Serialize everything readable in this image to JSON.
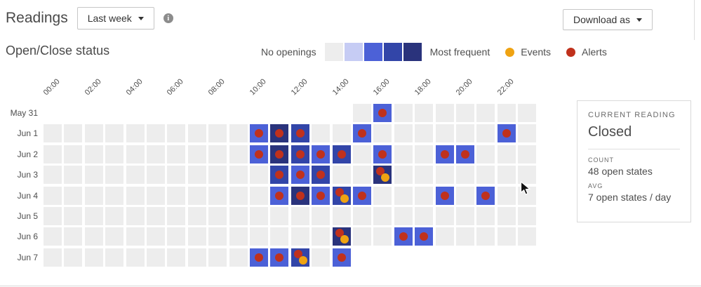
{
  "header": {
    "title": "Readings",
    "range_label": "Last week",
    "download_label": "Download as"
  },
  "section": {
    "title": "Open/Close status"
  },
  "legend": {
    "no_openings_label": "No openings",
    "most_frequent_label": "Most frequent",
    "events_label": "Events",
    "alerts_label": "Alerts",
    "scale_colors": [
      "#ededed",
      "#c6ccf4",
      "#4c61d7",
      "#3245a8",
      "#2a337c"
    ],
    "events_color": "#efa312",
    "alerts_color": "#c0311c"
  },
  "chart_data": {
    "type": "heatmap",
    "title": "Open/Close status",
    "x_tick_labels": [
      "00:00",
      "02:00",
      "04:00",
      "06:00",
      "08:00",
      "10:00",
      "12:00",
      "14:00",
      "16:00",
      "18:00",
      "20:00",
      "22:00"
    ],
    "columns_per_row": 24,
    "x_unit": "hour of day (hourly cells, labels every 2 h)",
    "intensity_levels": {
      "0": "no openings",
      "2": "medium",
      "3": "high",
      "4": "most frequent",
      "null": "outside range"
    },
    "rows": [
      {
        "label": "May 31",
        "cells": [
          null,
          null,
          null,
          null,
          null,
          null,
          null,
          null,
          null,
          null,
          null,
          null,
          null,
          null,
          null,
          0,
          2,
          0,
          0,
          0,
          0,
          0,
          0,
          0
        ],
        "alerts": [
          16
        ],
        "events": []
      },
      {
        "label": "Jun 1",
        "cells": [
          0,
          0,
          0,
          0,
          0,
          0,
          0,
          0,
          0,
          0,
          2,
          4,
          3,
          0,
          0,
          2,
          0,
          0,
          0,
          0,
          0,
          0,
          2,
          0
        ],
        "alerts": [
          10,
          11,
          12,
          15,
          22
        ],
        "events": []
      },
      {
        "label": "Jun 2",
        "cells": [
          0,
          0,
          0,
          0,
          0,
          0,
          0,
          0,
          0,
          0,
          2,
          4,
          3,
          2,
          3,
          0,
          2,
          0,
          0,
          2,
          2,
          0,
          0,
          0
        ],
        "alerts": [
          10,
          11,
          12,
          13,
          14,
          16,
          19,
          20
        ],
        "events": []
      },
      {
        "label": "Jun 3",
        "cells": [
          0,
          0,
          0,
          0,
          0,
          0,
          0,
          0,
          0,
          0,
          0,
          3,
          2,
          3,
          0,
          0,
          4,
          0,
          0,
          0,
          0,
          0,
          0,
          0
        ],
        "alerts": [
          11,
          12,
          13,
          16
        ],
        "events": [
          16
        ]
      },
      {
        "label": "Jun 4",
        "cells": [
          0,
          0,
          0,
          0,
          0,
          0,
          0,
          0,
          0,
          0,
          0,
          2,
          4,
          2,
          3,
          2,
          0,
          0,
          0,
          2,
          0,
          2,
          0,
          0
        ],
        "alerts": [
          11,
          12,
          13,
          14,
          15,
          19,
          21
        ],
        "events": [
          14
        ]
      },
      {
        "label": "Jun 5",
        "cells": [
          0,
          0,
          0,
          0,
          0,
          0,
          0,
          0,
          0,
          0,
          0,
          0,
          0,
          0,
          0,
          0,
          0,
          0,
          0,
          0,
          0,
          0,
          0,
          0
        ],
        "alerts": [],
        "events": []
      },
      {
        "label": "Jun 6",
        "cells": [
          0,
          0,
          0,
          0,
          0,
          0,
          0,
          0,
          0,
          0,
          0,
          0,
          0,
          0,
          4,
          0,
          0,
          2,
          2,
          0,
          0,
          0,
          0,
          0
        ],
        "alerts": [
          14,
          17,
          18
        ],
        "events": [
          14
        ]
      },
      {
        "label": "Jun 7",
        "cells": [
          0,
          0,
          0,
          0,
          0,
          0,
          0,
          0,
          0,
          0,
          2,
          2,
          3,
          0,
          2,
          null,
          null,
          null,
          null,
          null,
          null,
          null,
          null,
          null
        ],
        "alerts": [
          10,
          11,
          12,
          14
        ],
        "events": [
          12
        ]
      }
    ]
  },
  "panel": {
    "heading": "CURRENT READING",
    "status": "Closed",
    "count_label": "COUNT",
    "count_value": "48 open states",
    "avg_label": "AVG",
    "avg_value": "7 open states / day"
  }
}
